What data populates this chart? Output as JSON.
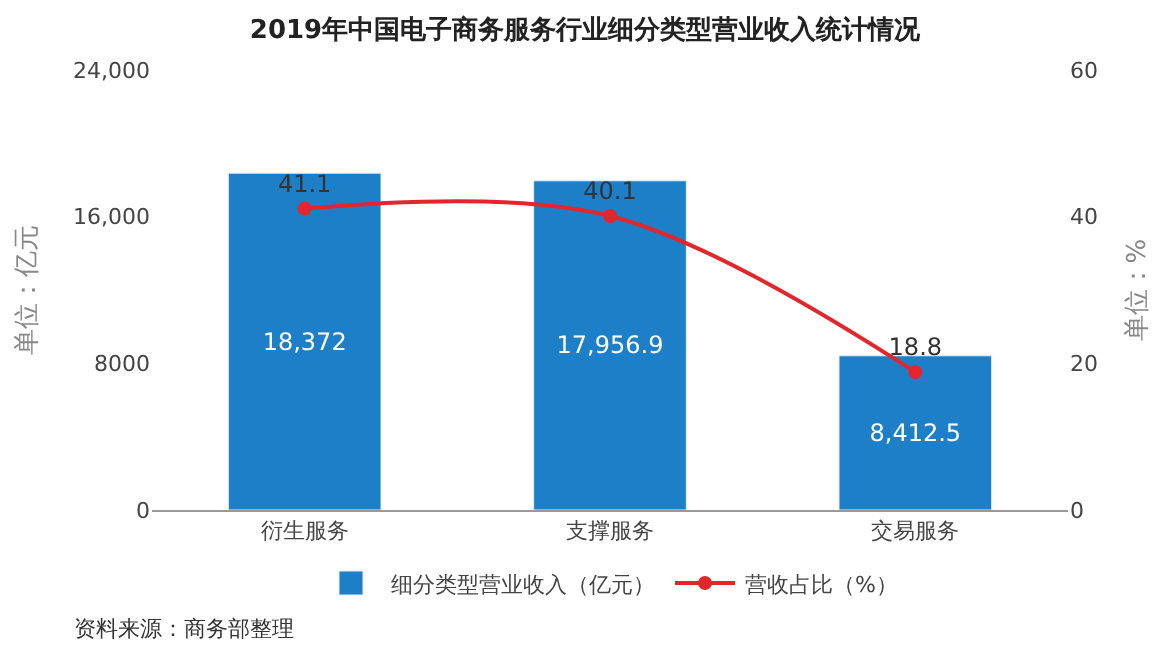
{
  "chart_data": {
    "type": "bar",
    "title": "2019年中国电子商务服务行业细分类型营业收入统计情况",
    "categories": [
      "衍生服务",
      "支撑服务",
      "交易服务"
    ],
    "series": [
      {
        "name": "细分类型营业收入（亿元）",
        "color": "#1e7fc9",
        "values": [
          18372,
          17956.9,
          8412.5
        ],
        "value_labels": [
          "18,372",
          "17,956.9",
          "8,412.5"
        ]
      },
      {
        "name": "营收占比（%）",
        "type": "line",
        "axis": "y2",
        "color": "#e3262b",
        "marker": "circle",
        "values": [
          41.1,
          40.1,
          18.8
        ],
        "value_labels": [
          "41.1",
          "40.1",
          "18.8"
        ]
      }
    ],
    "ylabel": "单位：亿元",
    "y2label": "单位：%",
    "ylim": [
      0,
      24000
    ],
    "yticks": [
      0,
      {
        "value": 8000,
        "label": "8000"
      },
      {
        "value": 16000,
        "label": "16,000"
      },
      {
        "value": 24000,
        "label": "24,000"
      }
    ],
    "y2lim": [
      0,
      60
    ],
    "y2ticks": [
      0,
      20,
      40,
      60
    ],
    "legend": "bottom",
    "annotations": [
      "资料来源：商务部整理"
    ]
  }
}
